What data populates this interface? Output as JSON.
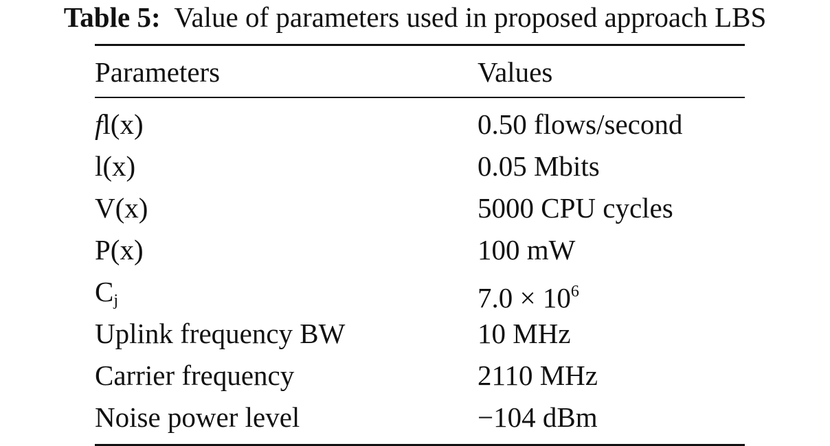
{
  "caption": {
    "label": "Table 5:",
    "text": "Value of parameters used in proposed approach LBS"
  },
  "table": {
    "headers": [
      "Parameters",
      "Values"
    ],
    "rows": [
      {
        "param": "fl(x)",
        "param_prefix": "f",
        "param_rest": "l(x)",
        "value": "0.50 flows/second"
      },
      {
        "param": "l(x)",
        "value": "0.05 Mbits"
      },
      {
        "param": "V(x)",
        "value": "5000 CPU cycles"
      },
      {
        "param": "P(x)",
        "value": "100 mW"
      },
      {
        "param": "Cj",
        "param_base": "C",
        "param_sub": "j",
        "value": "7.0 × 10⁶",
        "value_base": "7.0 × 10",
        "value_exp": "6"
      },
      {
        "param": "Uplink frequency BW",
        "value": "10 MHz"
      },
      {
        "param": "Carrier frequency",
        "value": "2110 MHz"
      },
      {
        "param": "Noise power level",
        "value": "−104 dBm"
      }
    ]
  }
}
